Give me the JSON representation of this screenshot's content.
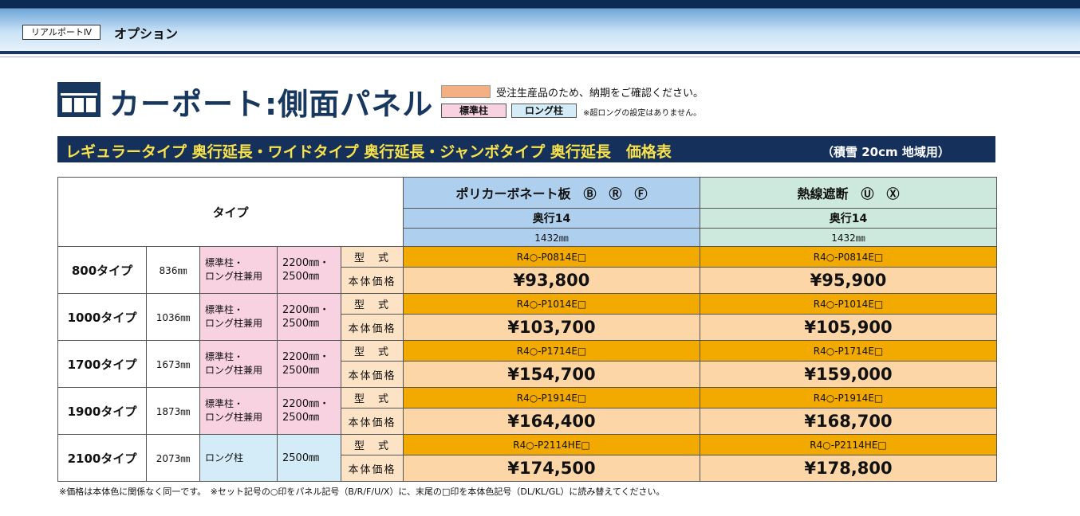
{
  "header": {
    "product": "リアルポートⅣ",
    "section": "オプション"
  },
  "title": "カーポート:側面パネル",
  "legend": {
    "made_to_order": "受注生産品のため、納期をご確認ください。",
    "standard_pillar": "標準柱",
    "long_pillar": "ロング柱",
    "note": "※超ロングの設定はありません。"
  },
  "banner": {
    "title": "レギュラータイプ 奥行延長・ワイドタイプ 奥行延長・ジャンボタイプ 奥行延長　価格表",
    "subtitle": "（積雪 20cm 地域用）"
  },
  "table": {
    "type_header": "タイプ",
    "columns": [
      {
        "material": "ポリカーボネート板　Ⓑ　Ⓡ　Ⓕ",
        "depth": "奥行14",
        "depth_mm": "1432㎜"
      },
      {
        "material": "熱線遮断　Ⓤ　Ⓧ",
        "depth": "奥行14",
        "depth_mm": "1432㎜"
      }
    ],
    "model_label": "型　式",
    "price_label": "本体価格",
    "rows": [
      {
        "type": "800タイプ",
        "width": "836㎜",
        "pillar": "標準柱・\nロング柱兼用",
        "height": "2200㎜・\n2500㎜",
        "models": [
          "R4○-P0814E□",
          "R4○-P0814E□"
        ],
        "prices": [
          "¥93,800",
          "¥95,900"
        ]
      },
      {
        "type": "1000タイプ",
        "width": "1036㎜",
        "pillar": "標準柱・\nロング柱兼用",
        "height": "2200㎜・\n2500㎜",
        "models": [
          "R4○-P1014E□",
          "R4○-P1014E□"
        ],
        "prices": [
          "¥103,700",
          "¥105,900"
        ]
      },
      {
        "type": "1700タイプ",
        "width": "1673㎜",
        "pillar": "標準柱・\nロング柱兼用",
        "height": "2200㎜・\n2500㎜",
        "models": [
          "R4○-P1714E□",
          "R4○-P1714E□"
        ],
        "prices": [
          "¥154,700",
          "¥159,000"
        ]
      },
      {
        "type": "1900タイプ",
        "width": "1873㎜",
        "pillar": "標準柱・\nロング柱兼用",
        "height": "2200㎜・\n2500㎜",
        "models": [
          "R4○-P1914E□",
          "R4○-P1914E□"
        ],
        "prices": [
          "¥164,400",
          "¥168,700"
        ]
      },
      {
        "type": "2100タイプ",
        "width": "2073㎜",
        "pillar": "ロング柱",
        "height": "2500㎜",
        "models": [
          "R4○-P2114HE□",
          "R4○-P2114HE□"
        ],
        "prices": [
          "¥174,500",
          "¥178,800"
        ]
      }
    ]
  },
  "footnote": "※価格は本体色に関係なく同一です。　※セット記号の○印をパネル記号（B/R/F/U/X）に、末尾の□印を本体色記号（DL/KL/GL）に読み替えてください。"
}
